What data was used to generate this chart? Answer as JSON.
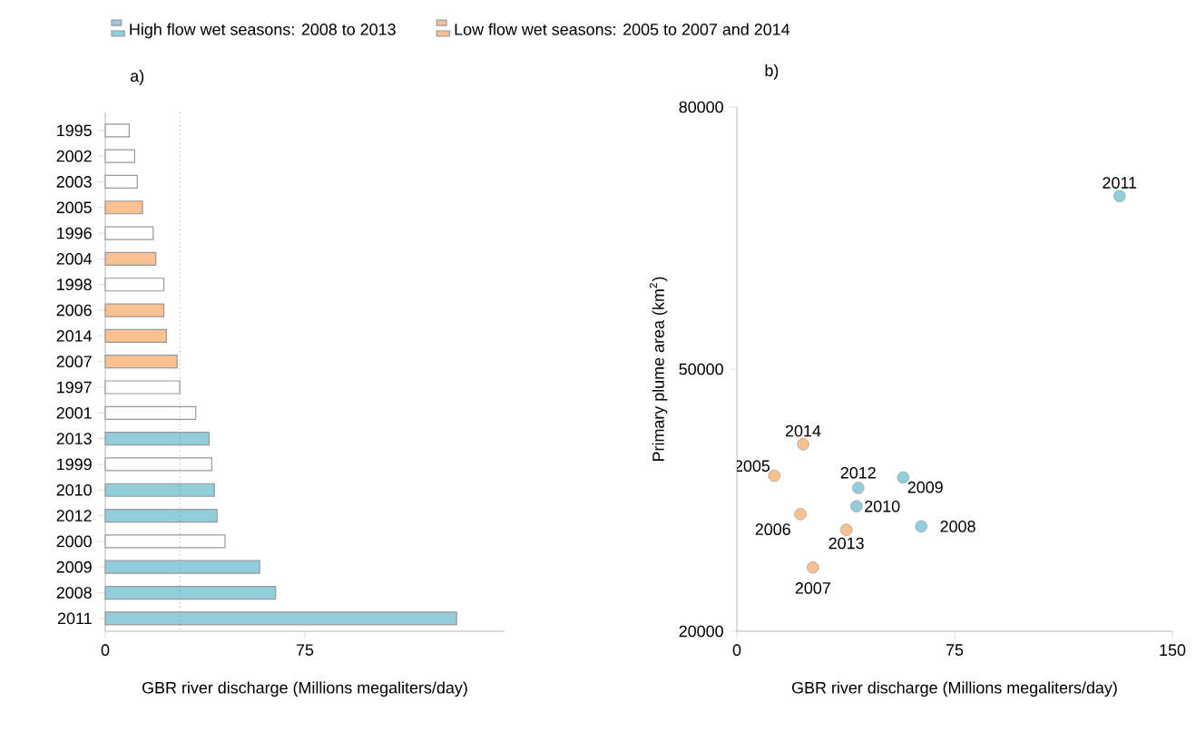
{
  "chart_data": [
    {
      "type": "bar",
      "orientation": "horizontal",
      "title": "a)",
      "xlabel": "GBR river discharge (Millions megaliters/day)",
      "categories": [
        "1995",
        "2002",
        "2003",
        "2005",
        "1996",
        "2004",
        "1998",
        "2006",
        "2014",
        "2007",
        "1997",
        "2001",
        "2013",
        "1999",
        "2010",
        "2012",
        "2000",
        "2009",
        "2008",
        "2011"
      ],
      "series": [
        {
          "name": "High flow wet seasons: 2008 to 2013",
          "color": "#92cddc",
          "values": [
            null,
            null,
            null,
            null,
            null,
            null,
            null,
            null,
            null,
            null,
            null,
            null,
            39,
            null,
            41,
            42,
            null,
            58,
            64,
            132
          ]
        },
        {
          "name": "Low flow wet seasons: 2005 to 2007 and  2014",
          "color": "#fac090",
          "values": [
            null,
            null,
            null,
            14,
            null,
            19,
            null,
            22,
            23,
            27,
            null,
            null,
            null,
            null,
            null,
            null,
            null,
            null,
            null,
            null
          ]
        },
        {
          "color": "#ffffff",
          "values": [
            9,
            11,
            12,
            null,
            18,
            null,
            22,
            null,
            null,
            null,
            28,
            34,
            null,
            40,
            null,
            null,
            45,
            null,
            null,
            null
          ]
        }
      ],
      "xlim": [
        0,
        150
      ],
      "xticks": [
        0,
        75
      ],
      "ref_lines": [
        {
          "axis": "x",
          "value": 28,
          "line_style": "dotted"
        }
      ],
      "legend": "top"
    },
    {
      "type": "scatter",
      "title": "b)",
      "xlabel": "GBR river discharge  (Millions megaliters/day)",
      "ylabel": "Primary plume area (km$^{2}$)",
      "series": [
        {
          "color": "#92cddc",
          "x": [
            131.8,
            41.8,
            57.3,
            41.2,
            63.5
          ],
          "values": [
            69800,
            36400,
            37600,
            34300,
            32000
          ]
        },
        {
          "color": "#fac090",
          "x": [
            22.8,
            12.9,
            21.9,
            37.7,
            26.2
          ],
          "values": [
            41400,
            37800,
            33400,
            31600,
            27300
          ]
        }
      ],
      "marker": "circle",
      "xlim": [
        0,
        150
      ],
      "xticks": [
        0,
        75,
        150
      ],
      "ylim": [
        20000,
        80000
      ],
      "yticks": [
        20000,
        50000,
        80000
      ],
      "annotations": [
        {
          "text": "2011",
          "x": 131.8,
          "y": 69800
        },
        {
          "text": "2014",
          "x": 22.8,
          "y": 41400
        },
        {
          "text": "2005",
          "x": 12.9,
          "y": 37800
        },
        {
          "text": "2012",
          "x": 41.8,
          "y": 36400
        },
        {
          "text": "2009",
          "x": 57.3,
          "y": 37600
        },
        {
          "text": "2010",
          "x": 41.2,
          "y": 34300
        },
        {
          "text": "2006",
          "x": 21.9,
          "y": 33400
        },
        {
          "text": "2013",
          "x": 37.7,
          "y": 31600
        },
        {
          "text": "2008",
          "x": 63.5,
          "y": 32000
        },
        {
          "text": "2007",
          "x": 26.2,
          "y": 27300
        }
      ]
    }
  ]
}
